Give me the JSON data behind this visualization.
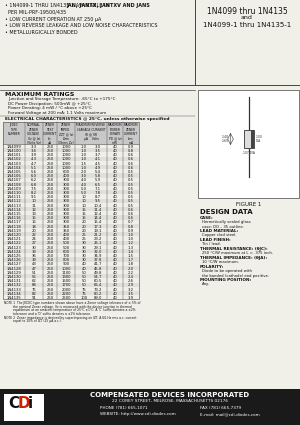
{
  "title_right_1": "1N4099 thru 1N4135",
  "title_right_2": "and",
  "title_right_3": "1N4099-1 thru 1N4135-1",
  "bullets": [
    "1N4099-1 THRU 1N4135-1 AVAILABLE IN JAN, JANTX, JANTXV AND JANS",
    "  PER MIL-PRF-19500/435",
    "LOW CURRENT OPERATION AT 250 μA",
    "LOW REVERSE LEAKAGE AND LOW NOISE CHARACTERISTICS",
    "METALLURGICALLY BONDED"
  ],
  "bullets_bold_idx": 0,
  "bullets_bold_pre": "1N4099-1 THRU 1N4135-1 AVAILABLE IN ",
  "bullets_bold_post": "JAN, JANTX, JANTXV AND JANS",
  "max_ratings_title": "MAXIMUM RATINGS",
  "max_ratings": [
    "Junction and Storage Temperature: -65°C to +175°C",
    "DC Power Dissipation: 500mW @ +25°C",
    "Power Derating: 4 mW / °C above +25°C",
    "Forward Voltage at 200 mA: 1.1 Volts maximum"
  ],
  "elec_char_title": "ELECTRICAL CHARACTERISTICS @ 25°C, unless otherwise specified",
  "table_col_widths": [
    22,
    18,
    14,
    18,
    32,
    16,
    16
  ],
  "table_headers": [
    "JEDEC\nTYPE\nNUMBER",
    "NOMINAL\nZENER\nVOLTAGE\nVz @ Izt\n(Volts Vz)",
    "ZENER\nTEST\nCURRENT\nIzt\nμA",
    "ZENER\nIMPED.\nZZT @ Izt\nΩzm\n(Ohms Zz)",
    "MAXIMUM REVERSE\nLEAKAGE CURRENT\nIR @ VR\nμA    Volts",
    "MAXIMUM\nPOWER\nDERATE\nPD @ Izt\nmW",
    "MAXIMUM\nZENER\nCURRENT\nIzm\nmA"
  ],
  "table_data": [
    [
      "1N4099",
      "3.3",
      "250",
      "1000",
      "1.0",
      "3.0",
      "40",
      "0.9"
    ],
    [
      "1N4100",
      "3.6",
      "250",
      "1000",
      "1.0",
      "3.5",
      "40",
      "0.8"
    ],
    [
      "1N4101",
      "3.9",
      "250",
      "1000",
      "1.0",
      "3.7",
      "40",
      "0.6"
    ],
    [
      "1N4102",
      "4.3",
      "250",
      "1000",
      "1.0",
      "4.1",
      "40",
      "0.6"
    ],
    [
      "1N4103",
      "4.7",
      "250",
      "1000",
      "1.5",
      "4.5",
      "40",
      "0.6"
    ],
    [
      "1N4104",
      "5.1",
      "250",
      "1000",
      "1.0",
      "4.9",
      "40",
      "0.6"
    ],
    [
      "1N4105",
      "5.6",
      "250",
      "600",
      "2.0",
      "5.4",
      "40",
      "0.5"
    ],
    [
      "1N4106",
      "6.0",
      "250",
      "400",
      "3.0",
      "5.8",
      "40",
      "0.5"
    ],
    [
      "1N4107",
      "6.2",
      "250",
      "300",
      "4.0",
      "5.9",
      "40",
      "0.5"
    ],
    [
      "1N4108",
      "6.8",
      "250",
      "300",
      "4.0",
      "6.5",
      "40",
      "0.5"
    ],
    [
      "1N4109",
      "7.5",
      "250",
      "300",
      "5.0",
      "7.1",
      "40",
      "0.5"
    ],
    [
      "1N4110",
      "8.2",
      "250",
      "300",
      "5.0",
      "7.8",
      "40",
      "0.5"
    ],
    [
      "1N4111",
      "9.1",
      "250",
      "300",
      "10",
      "8.7",
      "40",
      "0.5"
    ],
    [
      "1N4112",
      "10",
      "250",
      "300",
      "10",
      "9.5",
      "40",
      "0.5"
    ],
    [
      "1N4113",
      "11",
      "250",
      "300",
      "10",
      "10.4",
      "40",
      "0.5"
    ],
    [
      "1N4114",
      "12",
      "250",
      "300",
      "15",
      "11.4",
      "40",
      "0.6"
    ],
    [
      "1N4115",
      "13",
      "250",
      "300",
      "15",
      "12.4",
      "40",
      "0.6"
    ],
    [
      "1N4116",
      "15",
      "250",
      "300",
      "15",
      "14.4",
      "40",
      "0.6"
    ],
    [
      "1N4117",
      "16",
      "250",
      "300",
      "20",
      "15.4",
      "40",
      "0.7"
    ],
    [
      "1N4118",
      "18",
      "250",
      "350",
      "20",
      "17.3",
      "40",
      "0.8"
    ],
    [
      "1N4119",
      "20",
      "250",
      "350",
      "20",
      "19.1",
      "40",
      "0.9"
    ],
    [
      "1N4120",
      "22",
      "250",
      "400",
      "25",
      "21.2",
      "40",
      "1.0"
    ],
    [
      "1N4121",
      "24",
      "250",
      "400",
      "25",
      "23.2",
      "40",
      "1.0"
    ],
    [
      "1N4122",
      "27",
      "250",
      "500",
      "30",
      "26.1",
      "40",
      "1.2"
    ],
    [
      "1N4123",
      "30",
      "250",
      "500",
      "30",
      "29.1",
      "40",
      "1.3"
    ],
    [
      "1N4124",
      "33",
      "250",
      "600",
      "30",
      "32.0",
      "40",
      "1.4"
    ],
    [
      "1N4125",
      "36",
      "250",
      "700",
      "30",
      "34.9",
      "40",
      "1.5"
    ],
    [
      "1N4126",
      "39",
      "250",
      "800",
      "30",
      "37.8",
      "40",
      "1.7"
    ],
    [
      "1N4127",
      "43",
      "250",
      "900",
      "40",
      "41.7",
      "40",
      "1.8"
    ],
    [
      "1N4128",
      "47",
      "250",
      "1000",
      "40",
      "45.8",
      "40",
      "2.0"
    ],
    [
      "1N4129",
      "51",
      "250",
      "1100",
      "50",
      "49.8",
      "40",
      "2.2"
    ],
    [
      "1N4130",
      "56",
      "250",
      "1300",
      "50",
      "54.7",
      "40",
      "2.4"
    ],
    [
      "1N4131",
      "62",
      "250",
      "1500",
      "50",
      "60.5",
      "40",
      "2.6"
    ],
    [
      "1N4132",
      "68",
      "250",
      "1700",
      "50",
      "66.4",
      "40",
      "2.9"
    ],
    [
      "1N4133",
      "75",
      "250",
      "2000",
      "75",
      "73.2",
      "40",
      "3.2"
    ],
    [
      "1N4134",
      "82",
      "250",
      "2200",
      "75",
      "80.2",
      "40",
      "3.5"
    ],
    [
      "1N4135",
      "91",
      "250",
      "2500",
      "100",
      "89.0",
      "40",
      "3.9"
    ]
  ],
  "note1_lines": [
    "NOTE 1  The JEDEC type numbers shown above have a Zener voltage tolerance of ± 5% of",
    "         the nominal Zener voltage. Vz is measured with the device junction in thermal",
    "         equilibrium at an ambient temperature of 25°C ±1°C. A 'C' suffix denotes a ±2%",
    "         tolerance and a 'D' suffix denotes a ±1% tolerance."
  ],
  "note2_lines": [
    "NOTE 2  Zener impedance is derived by superimposing on IZT. A 60-Hz rms a.c. current",
    "         equal to 10% of IZT (25 μA a.c.)."
  ],
  "figure_label": "FIGURE 1",
  "design_data_title": "DESIGN DATA",
  "design_items": [
    [
      "CASE:",
      "Hermetically sealed glass\ncase: DO – 35 outline."
    ],
    [
      "LEAD MATERIAL:",
      "Copper clad steel."
    ],
    [
      "LEAD FINISH:",
      "Tin / lead."
    ],
    [
      "THERMAL RESISTANCE: (θJC):",
      "250 °C/W maximum at L = .375 inch."
    ],
    [
      "THERMAL IMPEDANCE: (θJA):",
      "10 °C/W maximum."
    ],
    [
      "POLARITY:",
      "Diode to be operated with\nthe banded (cathode) end positive."
    ],
    [
      "MOUNTING POSITION:",
      "Any."
    ]
  ],
  "company_name": "COMPENSATED DEVICES INCORPORATED",
  "company_address": "22 COREY STREET, MELROSE, MASSACHUSETTS 02176",
  "company_phone": "PHONE (781) 665-1071",
  "company_fax": "FAX (781) 665-7379",
  "company_web": "WEBSITE: http://www.cdi-diodes.com",
  "company_email": "E-mail: mail@cdi-diodes.com",
  "bg_color": "#f0efe8",
  "table_header_bg": "#c8c8c8",
  "divider_color": "#444444",
  "text_color": "#111111",
  "table_row_alt": "#e0e0da",
  "footer_bg": "#1a1a1a",
  "footer_text": "#ffffff",
  "logo_c_color": "#111111",
  "logo_d_color": "#cc2200",
  "logo_i_color": "#111111"
}
